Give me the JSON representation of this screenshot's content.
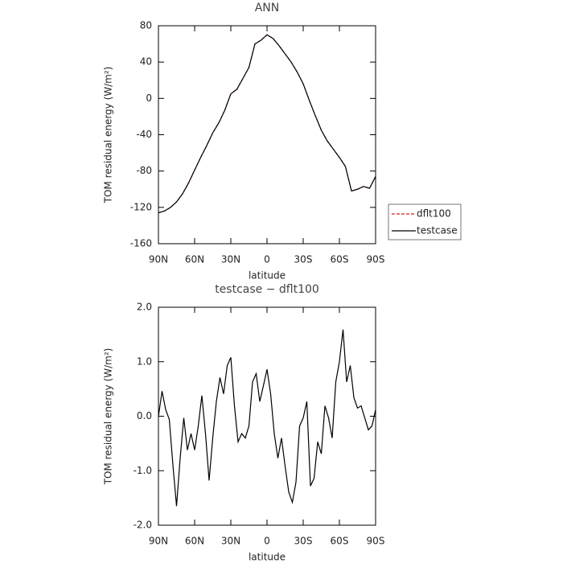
{
  "chart_data": [
    {
      "type": "line",
      "title": "ANN",
      "xlabel": "latitude",
      "ylabel": "TOM residual energy (W/m²)",
      "x": [
        90,
        85,
        80,
        75,
        70,
        65,
        60,
        55,
        50,
        45,
        40,
        35,
        30,
        25,
        20,
        15,
        10,
        5,
        0,
        -5,
        -10,
        -15,
        -20,
        -25,
        -30,
        -35,
        -40,
        -45,
        -50,
        -55,
        -60,
        -65,
        -70,
        -75,
        -80,
        -85,
        -90
      ],
      "series": [
        {
          "name": "dflt100",
          "color": "#d62020",
          "style": "dashed",
          "values": [
            -126,
            -124,
            -120,
            -114,
            -105,
            -93,
            -79,
            -65,
            -52,
            -38,
            -27,
            -13,
            5,
            10,
            22,
            34,
            60,
            64,
            70,
            66,
            58,
            49,
            40,
            29,
            16,
            -2,
            -19,
            -35,
            -47,
            -56,
            -65,
            -75,
            -102,
            -100,
            -97,
            -99,
            -86
          ]
        },
        {
          "name": "testcase",
          "color": "#000000",
          "style": "solid",
          "values": [
            -126,
            -124,
            -120,
            -114,
            -105,
            -93,
            -79,
            -65,
            -52,
            -38,
            -27,
            -13,
            5,
            10,
            22,
            34,
            60,
            64,
            70,
            66,
            58,
            49,
            40,
            29,
            16,
            -2,
            -19,
            -35,
            -47,
            -56,
            -65,
            -75,
            -102,
            -100,
            -97,
            -99,
            -86
          ]
        }
      ],
      "xlim": [
        90,
        -90
      ],
      "xticks": [
        {
          "value": 90,
          "label": "90N"
        },
        {
          "value": 60,
          "label": "60N"
        },
        {
          "value": 30,
          "label": "30N"
        },
        0,
        {
          "value": -30,
          "label": "30S"
        },
        {
          "value": -60,
          "label": "60S"
        },
        {
          "value": -90,
          "label": "90S"
        }
      ],
      "ylim": [
        -160,
        80
      ],
      "yticks": [
        80,
        40,
        0,
        -40,
        -80,
        -120,
        -160
      ],
      "legend": "right"
    },
    {
      "type": "line",
      "title": "testcase − dflt100",
      "xlabel": "latitude",
      "ylabel": "TOM residual energy (W/m²)",
      "x": [
        90,
        87,
        84,
        81,
        78,
        75,
        72,
        69,
        66,
        63,
        60,
        57,
        54,
        51,
        48,
        45,
        42,
        39,
        36,
        33,
        30,
        27,
        24,
        21,
        18,
        15,
        12,
        9,
        6,
        3,
        0,
        -3,
        -6,
        -9,
        -12,
        -15,
        -18,
        -21,
        -24,
        -27,
        -30,
        -33,
        -36,
        -39,
        -42,
        -45,
        -48,
        -51,
        -54,
        -57,
        -60,
        -63,
        -66,
        -69,
        -72,
        -75,
        -78,
        -81,
        -84,
        -87,
        -90
      ],
      "values": [
        0,
        0.46,
        0.12,
        -0.06,
        -0.9,
        -1.65,
        -0.77,
        -0.03,
        -0.62,
        -0.32,
        -0.62,
        -0.18,
        0.38,
        -0.32,
        -1.18,
        -0.4,
        0.27,
        0.71,
        0.41,
        0.93,
        1.08,
        0.19,
        -0.47,
        -0.32,
        -0.4,
        -0.18,
        0.63,
        0.78,
        0.27,
        0.56,
        0.86,
        0.41,
        -0.32,
        -0.77,
        -0.4,
        -0.92,
        -1.39,
        -1.58,
        -1.21,
        -0.18,
        -0.03,
        0.27,
        -1.28,
        -1.14,
        -0.47,
        -0.69,
        0.19,
        -0.03,
        -0.4,
        0.63,
        1.0,
        1.59,
        0.63,
        0.93,
        0.34,
        0.15,
        0.19,
        -0.03,
        -0.25,
        -0.18,
        0.12
      ],
      "color": "#000000",
      "xlim": [
        90,
        -90
      ],
      "xticks": [
        {
          "value": 90,
          "label": "90N"
        },
        {
          "value": 60,
          "label": "60N"
        },
        {
          "value": 30,
          "label": "30N"
        },
        0,
        {
          "value": -30,
          "label": "30S"
        },
        {
          "value": -60,
          "label": "60S"
        },
        {
          "value": -90,
          "label": "90S"
        }
      ],
      "ylim": [
        -2,
        2
      ],
      "yticks": [
        {
          "value": 2,
          "label": "2.0"
        },
        {
          "value": 1,
          "label": "1.0"
        },
        {
          "value": 0,
          "label": "0.0"
        },
        {
          "value": -1,
          "label": "-1.0"
        },
        {
          "value": -2,
          "label": "-2.0"
        }
      ]
    }
  ]
}
